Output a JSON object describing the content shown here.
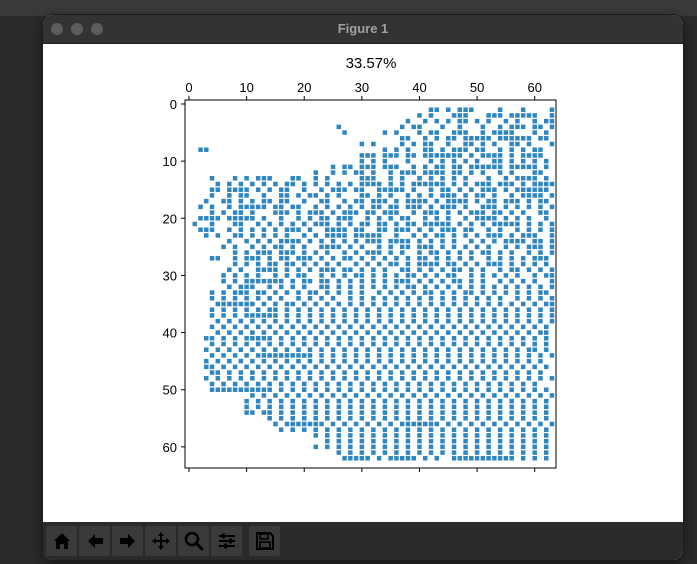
{
  "window": {
    "title": "Figure 1"
  },
  "traffic_lights": [
    "close-button",
    "minimize-button",
    "zoom-button"
  ],
  "toolbar": {
    "items": [
      {
        "name": "home-button",
        "icon": "home-icon"
      },
      {
        "name": "back-button",
        "icon": "arrow-left-icon"
      },
      {
        "name": "forward-button",
        "icon": "arrow-right-icon"
      },
      {
        "name": "pan-button",
        "icon": "move-icon"
      },
      {
        "name": "zoom-button",
        "icon": "magnifier-icon"
      },
      {
        "name": "configure-subplots-button",
        "icon": "sliders-icon"
      },
      {
        "name": "save-button",
        "icon": "floppy-disk-icon"
      }
    ]
  },
  "chart_data": {
    "type": "scatter",
    "title": "33.57%",
    "xlabel": "",
    "ylabel": "",
    "xlim": [
      0,
      63
    ],
    "ylim": [
      63,
      0
    ],
    "x_ticks": [
      "0",
      "10",
      "20",
      "30",
      "40",
      "50",
      "60"
    ],
    "y_ticks": [
      "0",
      "10",
      "20",
      "30",
      "40",
      "50",
      "60"
    ],
    "x_axis_position": "top",
    "y_axis_inverted": true,
    "grid": false,
    "marker": "square",
    "color": "#2f86c0",
    "fraction_filled": 0.3357,
    "grid_size": 64,
    "occupied_rows": [
      "........................................................................###..",
      "..........................................##.#.###....#...#....#......##....",
      "........................................#.#...###...###.#####..#.......#..##",
      "......................................#..#.#.#.##.#.#..#.#..#.####.......#.",
      "..........................#..........#.##...#..#...#..#.###.##.###....#.#.#",
      "...........................#......#.#...#.##..###..#.####...#.#.###..#...#.",
      ".....................................##..#.#.##.#####.######.##.#.#......##",
      "..............................#.#....#.#.##..#..##.#.#..##.#...##...#.#.#.#",
      "..##..............................#.#.#..##.#.###.##..#.#.#.##...#.#....##",
      "..............................###.###.##.#######.#.####.#.####...#.#...##",
      "..............................#.#.#...#...#.#.#.#.#..##.#.#.#.#..#.##..#.##",
      ".........................#.##.###.###..#.#.##.##.######.#####.#..##..#.###",
      "......................#..#.#.##.#..#.###.####.##.#.#..#.#...##..#.##.####..",
      "....#...#.#.###...##..#.#.....###..#.#..#.#.#.#.#...#..#.####.#.#.###.#.#",
      ".....#.#.#.#.#.#.##.#.#.#.#.#.####.#.#.######.#.#.###.###.#.####..##.##.#",
      "....##.####.#.#.##..#..#.###.##..#####.#..#.##.#.#.###.#.######..#.#..##.#",
      "....#..#.##..#..##.#.##.#.#...##.#.#..#.#.#.###.#.##.#..#.####.#.#.#.####",
      "...#..##.#.#.##.##..#..##..#.##.###.#.####.#.####.#.##.###.#.##.##.#..#.#",
      "..#.#..#.#####.##.##..#.#.#.#.#.##.##.###.#.###.#..###.#.#.#.#.#.#.#.##.#",
      "....#.#.##.#...###.#.###.#.###.##.###..#.###.#.#.###.##.#.#..##.#.#.#.#",
      "..####.#####.#..#..#.#.##.###..#.#.#.##..#.#.#..#.####.#.#.#..#.##.#.#.##",
      ".#..#...##..#.#.#.#.#.###.#.#.##.##.#.##.#####.#.#.#.#####.#.#.#.##..#.##",
      "..###..#.#.#.#.#.###.#..####.##..##.###.#.#.###.##..#.#..#.#.#.#.#.#.#.##",
      "...#.#..##.#.#.#.#..#.#.####.#####..#..#.#.##.#.#.#.###.#.###..#.##..##.#",
      ".......#..#.#.#.####.#.#.#.#.#.###.####.#.#.#.#..#.#.#.####.##.##.##.#.#.##",
      "......#.#..#.#.##.#.#..####.#.#..#.#.##.###.#.#.#.#.#..#.#.###.#.##..##.#.#",
      "........#.#.###.###.#.#.#..#.#.###.#.#..#.##.#.#.#.##.#.#..#.#.##.##.##..##",
      "....##..#.###.#.##.###.#.#.##.#.#.#.#.#.##.#.#.#.#..#.#.#.#.###.#.##.##..#",
      "........#.#.#.##.##.#.#.#.#..#.#.#.##.#.####.##.#.#.###.#.#.#.#..#.#.#.##.#",
      ".......#.#..####.#.#.#.###.##.#.#.#..##.#.#.#.##.#.#..#.##.#.#.#.#.##.#.#.#",
      "......#.#.#.#..#.#.##..#.#.#.##.#.#.#.##.#.#.##..#.#.#.#.#..#.##..#.##.#.##",
      "......#.#.#######.#.##.##.#.#.#.#.#.###.#.#.#.##.#.#..#.#.#.#..#.#.#.#.##.",
      ".......#.###..#.#.#.#..##.#.#.#.#.#.#.##.#.#.#.#.#.#.#.#.#.#.#.#.#.#..#.#",
      "....#.#.###.##.#.#.#.##.#.#.#.#..#.#.#.#.##.#.#.##.#.#.#.#.#.##.#.##.#.##",
      "....#.#.#.#.#.#.#..#.#.#.#..#.#.#.#.#.#.#.#.#.#.#.#.#.#..#.#.#.#.#.#.##.#",
      ".....#######.#.#.##.#.#.#.#.#.#.#.#.#.#.#.#.#.#.#.#.#.#.#.#.#.##.#.#..#.#",
      "....#.#.#.#.#.##.#.#.#.#.#.#.#.#.#.#.#.#.#.#.#.#.#.#.#.#.#.#.#.#.#.#..#.#",
      "....#.#.#.######.#.#.#.#.#.#.#.#.#.#.#.#.#.#.#.#.#.#.#.#.#.#.#.#.#.#..#.#",
      ".....#.#.#.#.#.#.#.#.#.#.#.#.#.#.#.#.#.#.#.#.#.#.#.#.#.#.#.#.#.#..#.#.#.#",
      "....#.#.#.#.#.#.#.#.#.#.#.#.#.#.#.#.#.#.#.#.#.#.#.#.#.#.#.#.#.#..#.#.#..##",
      ".....#.#.#.#.#.#.#.#.#.#.#.#.#.#.#.#.#.#.#.#.#.#.#.#.#.#.#.#.##.#.#..#..##",
      "...##.#.#.#####.#.#.#.#.#.#.#.#.#.#.#.#.#.#.#.#.#.#.#.#.#.#.#.#.#.#.#...#",
      "....#.#.#.#.#.#.#.#.#.#.#.#.#.#.#.#.#.#.#.#.#.#.#.#.#.#.#.#.#.#..#.#....##",
      "...#.#.#.#.#.#.#.#.#.#.#.#.#.#.#.#.#.#.#.#.#.#.#.#.#.#.#.#.##.#.#.#.....##",
      "....#.#.#.#.##########.#.#.#.#.#.#.#.#.#.#.#.#.#.#.#.#.#.#.#.#.#......#..##",
      "...#.#.#.#.#.#.#.#.#.#.#.#.#.#.#.#.#.#.#.#.#.#.#.#.#.#.#.#.#.#.........##",
      "...##.#.#.#.#.#.#.#.#.#.#.#.#.#.#.#.#.#.#.#.#.#.#.#.#.#.#.#.#.#.......#.##",
      "....##.#.#.#.#.#.#.#.#.#.#.#.#.#.#.#.#.#.#.#.#.#.#.#.#.#.#.#.#.........##",
      "...#.#.#.#.#.#.#.#.#.#.#.#.#.#.#.#.#.#.#.#.#.#.#.#.#.#.#.#.#.#.#.......##",
      "....#.#.#.#.#.#.#.#.#.#.#.#.#.#.#.#.#.#.#.#.#.#.#.#.#.#.#.#.#.........###",
      "....###########.#.#.#.#.#.#.#.#.#.#.#.#.#.#.#.#.#.#.#.#.#.#.#.#.......#.#",
      "...........#.#.#.#.#.#.#.#.#.#.#.#.#.#.#.#.#.#.#.#.#.#.#.#.#.#.#......#.#",
      "..........#.#.#.#.#.#.#.#.#.#.#.#.#.#.#.#.#.#.#.#.#.#.#.#.#.#.#.#.....#.#",
      "..........#.#.#.#.#.#.#.#.#.#.#.#.#.#.#.#.#.#.#.#.#.#.#.#.#.#.#.#.......##",
      "..........##.##.#.#.#.#.#.#.#.#.#.#.#.#.#.#.#.#.#.#.#.#.#.#.#.#.#.......##",
      "..............#.#.#.#.#.#.#.#.#.#.#.#.#.#.#.#.#.#.#.#.#.#.#.#.#.#.......",
      "...............#.#######.#.#.#.#.#.#.#######.#.#.#.#.#.#.#.#.#.#.#.",
      "................#.#.#.#.#.#.#.#.#.#.#.#.#.#.#.#.#.#.#.#.#.#.#.#.#.#.",
      "......................#.#.#.#.#.#.#.#.#.#.#.#.#.#.#.#.#.#.#.#.#.#.",
      "........................#.#.#.#.#.#.#.#.#.#.#.#.#.#.#.#.#.#.#.#.#.",
      "......................#.#.#.#.#.#.#.#.#.#.#.#.#.#.#.#.#.#.#.#.#.#.",
      "..........................#.#.#.#.#.#.#.#.#.#.#.#.#.#.#.#.#.#.#.#.",
      "...........................#####.#.#####.#.#..###########.#.#.#.#."
    ]
  }
}
